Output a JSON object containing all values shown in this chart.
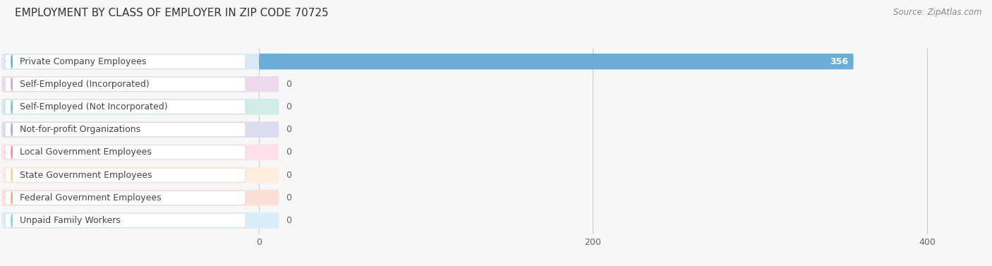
{
  "title": "EMPLOYMENT BY CLASS OF EMPLOYER IN ZIP CODE 70725",
  "source": "Source: ZipAtlas.com",
  "categories": [
    "Private Company Employees",
    "Self-Employed (Incorporated)",
    "Self-Employed (Not Incorporated)",
    "Not-for-profit Organizations",
    "Local Government Employees",
    "State Government Employees",
    "Federal Government Employees",
    "Unpaid Family Workers"
  ],
  "values": [
    356,
    0,
    0,
    0,
    0,
    0,
    0,
    0
  ],
  "bar_colors": [
    "#6aaed6",
    "#c9a8c8",
    "#6ec9b8",
    "#a8a8d8",
    "#f48cb0",
    "#f9c98a",
    "#f0a898",
    "#90c8e8"
  ],
  "label_bg_colors": [
    "#ffffff",
    "#ffffff",
    "#ffffff",
    "#ffffff",
    "#ffffff",
    "#ffffff",
    "#ffffff",
    "#ffffff"
  ],
  "bar_bg_colors": [
    "#daeaf5",
    "#ecdaec",
    "#d0ece8",
    "#dcdcf0",
    "#fce0ec",
    "#fdeedd",
    "#fbe0da",
    "#daeef8"
  ],
  "background_color": "#f7f7f7",
  "xlim": [
    0,
    430
  ],
  "xticks": [
    0,
    200,
    400
  ],
  "title_fontsize": 11,
  "source_fontsize": 8.5,
  "bar_label_fontsize": 9,
  "value_fontsize": 9,
  "value_label_356": "356"
}
